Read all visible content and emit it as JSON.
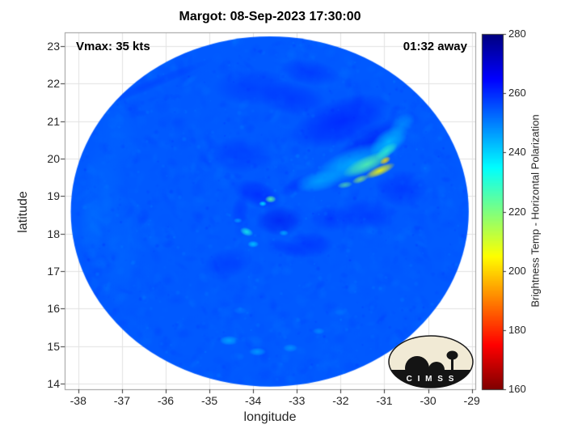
{
  "title": "Margot: 08-Sep-2023 17:30:00",
  "annotations": {
    "vmax": "Vmax: 35 kts",
    "eta": "01:32 away"
  },
  "axes": {
    "xlabel": "longitude",
    "ylabel": "latitude"
  },
  "colorbar": {
    "label": "Brightness Temp - Horizontal Polarization"
  },
  "logo": {
    "letters": "C I M S S"
  },
  "chart_data": {
    "type": "heatmap",
    "title": "Margot: 08-Sep-2023 17:30:00",
    "xlabel": "longitude",
    "ylabel": "latitude",
    "xlim": [
      -38.31,
      -28.92
    ],
    "ylim": [
      13.85,
      23.37
    ],
    "x_ticks": [
      -38,
      -37,
      -36,
      -35,
      -34,
      -33,
      -32,
      -31,
      -30,
      -29
    ],
    "y_ticks": [
      14,
      15,
      16,
      17,
      18,
      19,
      20,
      21,
      22,
      23
    ],
    "grid": true,
    "annotations": {
      "vmax": "Vmax: 35 kts",
      "time_to_obs": "01:32 away"
    },
    "colormap": "jet-reversed (high temp = dark blue, low temp = dark red)",
    "colorbar_label": "Brightness Temp - Horizontal Polarization",
    "colorbar_ticks": [
      160,
      180,
      200,
      220,
      240,
      260,
      280
    ],
    "temp_range_K": [
      160,
      280
    ],
    "swath": {
      "center_lon": -33.62,
      "center_lat": 18.59,
      "radius_lon": 4.55,
      "radius_lat": 4.67,
      "base_temp_K": 254.5,
      "noise_amp_K": 8
    },
    "features": [
      {
        "lon": -32.0,
        "lat": 21.0,
        "sx": 1.2,
        "sy": 0.6,
        "rot": -20,
        "temp": 265,
        "a": 0.5
      },
      {
        "lon": -31.3,
        "lat": 20.4,
        "sx": 0.9,
        "sy": 0.45,
        "rot": -30,
        "temp": 266,
        "a": 0.5
      },
      {
        "lon": -33.1,
        "lat": 21.6,
        "sx": 0.8,
        "sy": 0.45,
        "rot": 10,
        "temp": 263,
        "a": 0.4
      },
      {
        "lon": -34.0,
        "lat": 21.9,
        "sx": 0.9,
        "sy": 0.5,
        "rot": 0,
        "temp": 262,
        "a": 0.35
      },
      {
        "lon": -32.7,
        "lat": 22.3,
        "sx": 0.7,
        "sy": 0.35,
        "rot": 10,
        "temp": 263,
        "a": 0.35
      },
      {
        "lon": -34.3,
        "lat": 20.1,
        "sx": 0.7,
        "sy": 0.5,
        "rot": 0,
        "temp": 262,
        "a": 0.35
      },
      {
        "lon": -30.6,
        "lat": 19.2,
        "sx": 0.6,
        "sy": 0.5,
        "rot": 0,
        "temp": 263,
        "a": 0.4
      },
      {
        "lon": -31.4,
        "lat": 18.5,
        "sx": 0.7,
        "sy": 0.45,
        "rot": 0,
        "temp": 263,
        "a": 0.35
      },
      {
        "lon": -33.4,
        "lat": 18.35,
        "sx": 0.55,
        "sy": 0.4,
        "rot": 0,
        "temp": 267,
        "a": 0.5
      },
      {
        "lon": -33.9,
        "lat": 19.05,
        "sx": 0.6,
        "sy": 0.35,
        "rot": 20,
        "temp": 265,
        "a": 0.45
      },
      {
        "lon": -32.7,
        "lat": 17.7,
        "sx": 0.55,
        "sy": 0.35,
        "rot": 0,
        "temp": 263,
        "a": 0.4
      },
      {
        "lon": -34.6,
        "lat": 17.2,
        "sx": 0.6,
        "sy": 0.4,
        "rot": -15,
        "temp": 262,
        "a": 0.35
      },
      {
        "lon": -32.2,
        "lat": 18.4,
        "sx": 0.5,
        "sy": 0.35,
        "rot": 0,
        "temp": 262,
        "a": 0.35
      },
      {
        "lon": -33.0,
        "lat": 19.3,
        "sx": 0.45,
        "sy": 0.2,
        "rot": -30,
        "temp": 262,
        "a": 0.35
      },
      {
        "lon": -34.3,
        "lat": 18.6,
        "sx": 0.2,
        "sy": 0.45,
        "rot": 10,
        "temp": 262,
        "a": 0.35
      },
      {
        "lon": -33.2,
        "lat": 17.6,
        "sx": 0.5,
        "sy": 0.2,
        "rot": 20,
        "temp": 262,
        "a": 0.35
      },
      {
        "lon": -31.7,
        "lat": 19.9,
        "sx": 0.95,
        "sy": 0.4,
        "rot": -22,
        "temp": 240,
        "a": 0.65
      },
      {
        "lon": -30.9,
        "lat": 20.45,
        "sx": 0.5,
        "sy": 0.33,
        "rot": -35,
        "temp": 238,
        "a": 0.7
      },
      {
        "lon": -32.5,
        "lat": 19.4,
        "sx": 0.55,
        "sy": 0.28,
        "rot": -12,
        "temp": 242,
        "a": 0.6
      },
      {
        "lon": -30.6,
        "lat": 20.9,
        "sx": 0.35,
        "sy": 0.25,
        "rot": -40,
        "temp": 244,
        "a": 0.5
      },
      {
        "lon": -31.4,
        "lat": 19.85,
        "sx": 0.6,
        "sy": 0.22,
        "rot": -24,
        "temp": 224,
        "a": 0.8
      },
      {
        "lon": -30.95,
        "lat": 20.2,
        "sx": 0.3,
        "sy": 0.15,
        "rot": -35,
        "temp": 228,
        "a": 0.7
      },
      {
        "lon": -31.1,
        "lat": 19.68,
        "sx": 0.38,
        "sy": 0.13,
        "rot": -24,
        "temp": 205,
        "a": 0.9
      },
      {
        "lon": -30.98,
        "lat": 19.95,
        "sx": 0.14,
        "sy": 0.09,
        "rot": -30,
        "temp": 200,
        "a": 0.9
      },
      {
        "lon": -31.55,
        "lat": 19.45,
        "sx": 0.2,
        "sy": 0.1,
        "rot": -20,
        "temp": 216,
        "a": 0.7
      },
      {
        "lon": -31.9,
        "lat": 19.3,
        "sx": 0.18,
        "sy": 0.09,
        "rot": -10,
        "temp": 222,
        "a": 0.6
      },
      {
        "lon": -33.6,
        "lat": 18.92,
        "sx": 0.13,
        "sy": 0.1,
        "rot": 0,
        "temp": 224,
        "a": 0.9
      },
      {
        "lon": -33.78,
        "lat": 18.8,
        "sx": 0.09,
        "sy": 0.07,
        "rot": 0,
        "temp": 235,
        "a": 0.8
      },
      {
        "lon": -34.15,
        "lat": 18.05,
        "sx": 0.16,
        "sy": 0.11,
        "rot": 20,
        "temp": 232,
        "a": 0.8
      },
      {
        "lon": -34.0,
        "lat": 17.72,
        "sx": 0.13,
        "sy": 0.09,
        "rot": 0,
        "temp": 238,
        "a": 0.7
      },
      {
        "lon": -33.3,
        "lat": 18.02,
        "sx": 0.11,
        "sy": 0.08,
        "rot": 0,
        "temp": 240,
        "a": 0.6
      },
      {
        "lon": -34.35,
        "lat": 18.35,
        "sx": 0.1,
        "sy": 0.07,
        "rot": 0,
        "temp": 242,
        "a": 0.6
      },
      {
        "lon": -34.55,
        "lat": 15.15,
        "sx": 0.22,
        "sy": 0.13,
        "rot": 0,
        "temp": 243,
        "a": 0.7
      },
      {
        "lon": -33.9,
        "lat": 14.85,
        "sx": 0.2,
        "sy": 0.11,
        "rot": 0,
        "temp": 244,
        "a": 0.7
      },
      {
        "lon": -33.15,
        "lat": 14.95,
        "sx": 0.17,
        "sy": 0.11,
        "rot": 0,
        "temp": 245,
        "a": 0.65
      },
      {
        "lon": -32.5,
        "lat": 15.4,
        "sx": 0.14,
        "sy": 0.09,
        "rot": 0,
        "temp": 246,
        "a": 0.6
      },
      {
        "lon": -34.3,
        "lat": 15.95,
        "sx": 0.16,
        "sy": 0.1,
        "rot": 0,
        "temp": 249,
        "a": 0.5
      },
      {
        "lon": -32.0,
        "lat": 15.9,
        "sx": 0.14,
        "sy": 0.09,
        "rot": 0,
        "temp": 250,
        "a": 0.5
      },
      {
        "lon": -37.4,
        "lat": 19.0,
        "sx": 0.5,
        "sy": 1.6,
        "rot": 0,
        "temp": 251,
        "a": 0.35
      },
      {
        "lon": -37.0,
        "lat": 17.4,
        "sx": 0.45,
        "sy": 1.3,
        "rot": 8,
        "temp": 251,
        "a": 0.3
      },
      {
        "lon": -37.1,
        "lat": 20.6,
        "sx": 0.5,
        "sy": 0.9,
        "rot": -12,
        "temp": 252,
        "a": 0.3
      },
      {
        "lon": -37.7,
        "lat": 18.2,
        "sx": 0.3,
        "sy": 0.9,
        "rot": 0,
        "temp": 249,
        "a": 0.3
      },
      {
        "lon": -36.3,
        "lat": 22.0,
        "sx": 1.5,
        "sy": 0.14,
        "rot": -22,
        "temp": 259,
        "a": 0.4
      }
    ]
  }
}
